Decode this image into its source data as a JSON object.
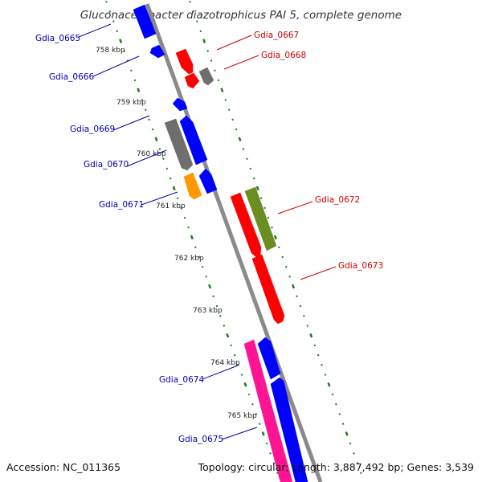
{
  "title": "Gluconacetobacter diazotrophicus PAI 5, complete genome",
  "footer": {
    "accession": "Accession: NC_011365",
    "summary": "Topology: circular; Length: 3,887,492 bp; Genes: 3,539"
  },
  "colors": {
    "backbone": "#8a8a8a",
    "tick": "#1f7a1f",
    "label_forward": "#cc0000",
    "label_reverse": "#0000aa",
    "gene_red": "#ff0000",
    "gene_blue": "#0000ff",
    "gene_gray": "#6e6e6e",
    "gene_orange": "#ff9900",
    "gene_olive": "#6b8e23",
    "gene_magenta": "#ff1493"
  },
  "scale_labels": [
    "758 kbp",
    "759 kbp",
    "760 kbp",
    "761 kbp",
    "762 kbp",
    "763 kbp",
    "764 kbp",
    "765 kbp"
  ],
  "genes": [
    {
      "label": "Gdia_0665",
      "strand": "reverse",
      "color": "blue"
    },
    {
      "label": "Gdia_0666",
      "strand": "reverse",
      "color": "blue"
    },
    {
      "label": "Gdia_0667",
      "strand": "forward",
      "color": "red"
    },
    {
      "label": "Gdia_0668",
      "strand": "forward",
      "color": "gray"
    },
    {
      "label": "Gdia_0669",
      "strand": "reverse",
      "color": "gray"
    },
    {
      "label": "Gdia_0670",
      "strand": "reverse",
      "color": "blue"
    },
    {
      "label": "Gdia_0671",
      "strand": "reverse",
      "color": "orange"
    },
    {
      "label": "Gdia_0672",
      "strand": "forward",
      "color": "olive"
    },
    {
      "label": "Gdia_0673",
      "strand": "forward",
      "color": "red"
    },
    {
      "label": "Gdia_0674",
      "strand": "reverse",
      "color": "magenta"
    },
    {
      "label": "Gdia_0675",
      "strand": "reverse",
      "color": "blue"
    }
  ]
}
